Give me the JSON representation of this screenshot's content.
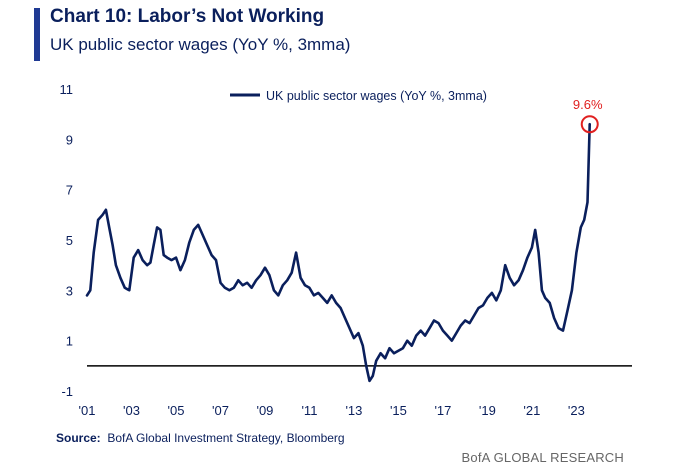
{
  "header": {
    "title": "Chart 10: Labor’s Not Working",
    "subtitle": "UK public sector wages (YoY %, 3mma)"
  },
  "footer": {
    "source_label": "Source:",
    "source_text": "BofA Global Investment Strategy, Bloomberg",
    "brand": "BofA GLOBAL RESEARCH"
  },
  "colors": {
    "line": "#0a1f5c",
    "highlight": "#e02020",
    "accent": "#1f3a93",
    "text": "#0a1f5c"
  },
  "chart_data": {
    "type": "line",
    "title": "",
    "xlabel": "",
    "ylabel": "",
    "grid": false,
    "legend_position": "top-center",
    "ylim": [
      -1,
      11
    ],
    "xlim": [
      2001,
      2025.5
    ],
    "y_ticks": [
      -1,
      1,
      3,
      5,
      7,
      9,
      11
    ],
    "x_ticks": [
      {
        "value": 2001,
        "label": "'01"
      },
      {
        "value": 2003,
        "label": "'03"
      },
      {
        "value": 2005,
        "label": "'05"
      },
      {
        "value": 2007,
        "label": "'07"
      },
      {
        "value": 2009,
        "label": "'09"
      },
      {
        "value": 2011,
        "label": "'11"
      },
      {
        "value": 2013,
        "label": "'13"
      },
      {
        "value": 2015,
        "label": "'15"
      },
      {
        "value": 2017,
        "label": "'17"
      },
      {
        "value": 2019,
        "label": "'19"
      },
      {
        "value": 2021,
        "label": "'21"
      },
      {
        "value": 2023,
        "label": "'23"
      }
    ],
    "zero_line": 0,
    "series": [
      {
        "name": "UK public sector wages (YoY %, 3mma)",
        "x": [
          2001.0,
          2001.15,
          2001.3,
          2001.5,
          2001.7,
          2001.85,
          2002.0,
          2002.15,
          2002.3,
          2002.5,
          2002.7,
          2002.9,
          2003.1,
          2003.3,
          2003.5,
          2003.7,
          2003.85,
          2004.0,
          2004.15,
          2004.3,
          2004.45,
          2004.6,
          2004.8,
          2005.0,
          2005.2,
          2005.4,
          2005.6,
          2005.8,
          2006.0,
          2006.2,
          2006.4,
          2006.6,
          2006.8,
          2007.0,
          2007.2,
          2007.4,
          2007.6,
          2007.8,
          2008.0,
          2008.2,
          2008.4,
          2008.6,
          2008.8,
          2009.0,
          2009.2,
          2009.4,
          2009.6,
          2009.8,
          2010.0,
          2010.2,
          2010.4,
          2010.6,
          2010.8,
          2011.0,
          2011.2,
          2011.4,
          2011.6,
          2011.8,
          2012.0,
          2012.2,
          2012.4,
          2012.6,
          2012.8,
          2013.0,
          2013.2,
          2013.4,
          2013.55,
          2013.7,
          2013.85,
          2014.0,
          2014.2,
          2014.4,
          2014.6,
          2014.8,
          2015.0,
          2015.2,
          2015.4,
          2015.6,
          2015.8,
          2016.0,
          2016.2,
          2016.4,
          2016.6,
          2016.8,
          2017.0,
          2017.2,
          2017.4,
          2017.6,
          2017.8,
          2018.0,
          2018.2,
          2018.4,
          2018.6,
          2018.8,
          2019.0,
          2019.2,
          2019.4,
          2019.6,
          2019.8,
          2020.0,
          2020.2,
          2020.4,
          2020.6,
          2020.8,
          2021.0,
          2021.15,
          2021.3,
          2021.45,
          2021.6,
          2021.8,
          2022.0,
          2022.2,
          2022.4,
          2022.6,
          2022.8,
          2023.0,
          2023.2,
          2023.35,
          2023.5,
          2023.6
        ],
        "values": [
          2.8,
          3.0,
          4.5,
          5.8,
          6.0,
          6.2,
          5.5,
          4.8,
          4.0,
          3.5,
          3.1,
          3.0,
          4.3,
          4.6,
          4.2,
          4.0,
          4.1,
          4.8,
          5.5,
          5.4,
          4.4,
          4.3,
          4.2,
          4.3,
          3.8,
          4.2,
          4.9,
          5.4,
          5.6,
          5.2,
          4.8,
          4.4,
          4.2,
          3.3,
          3.1,
          3.0,
          3.1,
          3.4,
          3.2,
          3.3,
          3.1,
          3.4,
          3.6,
          3.9,
          3.6,
          3.0,
          2.8,
          3.2,
          3.4,
          3.7,
          4.5,
          3.5,
          3.2,
          3.1,
          2.8,
          2.9,
          2.7,
          2.5,
          2.8,
          2.5,
          2.3,
          1.9,
          1.5,
          1.1,
          1.3,
          0.8,
          0.0,
          -0.6,
          -0.4,
          0.2,
          0.5,
          0.3,
          0.7,
          0.5,
          0.6,
          0.7,
          1.0,
          0.8,
          1.2,
          1.4,
          1.2,
          1.5,
          1.8,
          1.7,
          1.4,
          1.2,
          1.0,
          1.3,
          1.6,
          1.8,
          1.7,
          2.0,
          2.3,
          2.4,
          2.7,
          2.9,
          2.6,
          3.0,
          4.0,
          3.5,
          3.2,
          3.4,
          3.8,
          4.3,
          4.7,
          5.4,
          4.5,
          3.0,
          2.7,
          2.5,
          1.9,
          1.5,
          1.4,
          2.2,
          3.0,
          4.5,
          5.5,
          5.8,
          6.5,
          9.6
        ]
      }
    ],
    "annotations": [
      {
        "label": "9.6%",
        "x": 2023.6,
        "y": 9.6
      }
    ]
  }
}
